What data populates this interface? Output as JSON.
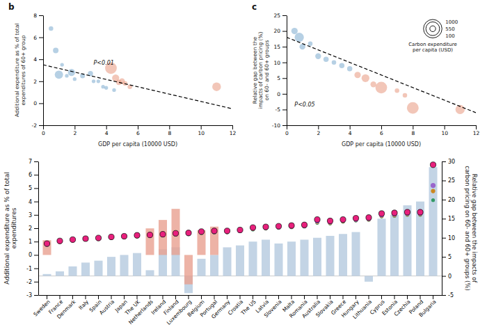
{
  "chart_data": [
    {
      "type": "bar",
      "categories": [
        "Sweden",
        "France",
        "Denmark",
        "Italy",
        "Spain",
        "Austria",
        "Japan",
        "The UK",
        "Netherlands",
        "Ireland",
        "Finland",
        "Luxembourg",
        "Belgium",
        "Portugal",
        "Germany",
        "Croatia",
        "The US",
        "Latvia",
        "Slovenia",
        "Malta",
        "Romania",
        "Australia",
        "Slovakia",
        "Greece",
        "Hungary",
        "Lithuania",
        "Cyprus",
        "Estonia",
        "Czechia",
        "Poland",
        "Bulgaria"
      ],
      "ylabel": "Additional expenditure as % of total expenditures",
      "y2label": "Relative gap between the impacts of carbon pricing on 60- and 60+ groups (%)",
      "ylim": [
        -3,
        7
      ],
      "yticks": [
        -3,
        -2,
        -1,
        0,
        1,
        2,
        3,
        4,
        5,
        6,
        7
      ],
      "y2lim": [
        -5,
        30
      ],
      "y2ticks": [
        -5,
        0,
        5,
        10,
        15,
        20,
        25,
        30
      ],
      "series": [
        {
          "type": "bar",
          "axis": "y2",
          "color": "#b8cde0",
          "values": [
            0.5,
            1.2,
            2.5,
            3.5,
            4.0,
            5.0,
            5.5,
            6.0,
            1.5,
            7.0,
            7.5,
            -4.5,
            4.5,
            5.5,
            7.5,
            8.0,
            9.0,
            9.5,
            8.5,
            9.0,
            9.5,
            10.0,
            10.5,
            11.0,
            11.5,
            -1.5,
            15.0,
            16.0,
            18.5,
            19.5,
            28.5
          ]
        },
        {
          "type": "bar",
          "color": "#e8a090",
          "values": [
            1.1,
            0.0,
            0.0,
            0.0,
            0.0,
            0.0,
            0.0,
            0.0,
            1.99,
            2.62,
            3.45,
            -2.2,
            1.85,
            2.12,
            0.0,
            0.0,
            0.0,
            0.0,
            0.0,
            0.0,
            0.0,
            0.0,
            0.0,
            0.0,
            0.0,
            0.0,
            0.0,
            0.0,
            0.0,
            0.0,
            0.0
          ]
        },
        {
          "type": "scatter",
          "color": "#339966",
          "values": [
            0.75,
            0.97,
            1.06,
            1.14,
            1.18,
            1.26,
            1.31,
            1.38,
            1.41,
            1.46,
            1.51,
            1.55,
            1.62,
            1.67,
            1.69,
            1.77,
            1.9,
            1.97,
            2.02,
            2.07,
            2.12,
            2.4,
            2.35,
            2.48,
            2.57,
            2.62,
            2.88,
            2.93,
            3.0,
            3.0,
            4.1
          ]
        },
        {
          "type": "scatter",
          "color": "#cc8822",
          "values": [
            0.77,
            0.99,
            1.09,
            1.17,
            1.21,
            1.29,
            1.34,
            1.41,
            1.44,
            1.49,
            1.54,
            1.58,
            1.66,
            1.71,
            1.73,
            1.8,
            1.96,
            2.01,
            2.06,
            2.11,
            2.16,
            2.48,
            2.41,
            2.53,
            2.62,
            2.67,
            2.93,
            2.98,
            3.06,
            3.06,
            4.78
          ]
        },
        {
          "type": "scatter",
          "color": "#9966cc",
          "values": [
            0.8,
            1.02,
            1.12,
            1.2,
            1.24,
            1.32,
            1.38,
            1.45,
            1.48,
            1.52,
            1.58,
            1.61,
            1.7,
            1.75,
            1.77,
            1.83,
            2.0,
            2.05,
            2.1,
            2.15,
            2.2,
            2.55,
            2.47,
            2.58,
            2.67,
            2.72,
            3.0,
            3.05,
            3.12,
            3.12,
            5.2
          ]
        },
        {
          "type": "scatter",
          "color": "#e8207c",
          "values": [
            0.85,
            1.05,
            1.15,
            1.22,
            1.27,
            1.35,
            1.4,
            1.47,
            1.5,
            1.55,
            1.62,
            1.65,
            1.75,
            1.8,
            1.8,
            1.87,
            2.05,
            2.1,
            2.15,
            2.2,
            2.25,
            2.65,
            2.55,
            2.65,
            2.75,
            2.8,
            3.1,
            3.15,
            3.2,
            3.2,
            6.75
          ]
        }
      ]
    },
    {
      "type": "scatter",
      "title": "b",
      "xlabel": "GDP per capita (10000 USD)",
      "ylabel": "Additional expenditure as % of total\nexpenditures of 60+ group",
      "xlim": [
        0,
        12
      ],
      "xticks": [
        0,
        2,
        4,
        6,
        8,
        10,
        12
      ],
      "ylim": [
        -2,
        8
      ],
      "yticks": [
        -2,
        0,
        2,
        4,
        6,
        8
      ],
      "series": [
        {
          "color": "#7aaace",
          "x": [
            0.5,
            0.8,
            1.0,
            1.2,
            1.5,
            1.8,
            2.0,
            2.5,
            3.0,
            3.2,
            3.5,
            3.8,
            4.0,
            4.5
          ],
          "values": [
            6.8,
            4.8,
            2.6,
            3.5,
            2.5,
            2.8,
            2.2,
            2.5,
            2.7,
            2.0,
            2.0,
            1.5,
            1.4,
            1.2
          ],
          "sizes": [
            60,
            90,
            200,
            40,
            40,
            150,
            40,
            70,
            80,
            40,
            40,
            40,
            40,
            40
          ]
        },
        {
          "color": "#e8977e",
          "x": [
            4.3,
            4.6,
            4.8,
            5.0,
            5.2,
            5.5,
            11.0
          ],
          "values": [
            3.2,
            2.3,
            1.9,
            2.0,
            1.8,
            1.5,
            1.5
          ],
          "sizes": [
            400,
            150,
            80,
            100,
            60,
            60,
            220
          ]
        },
        {
          "type": "line",
          "line_style": "dashed",
          "color": "#000000",
          "x": [
            0,
            12
          ],
          "values": [
            3.5,
            -0.5
          ]
        }
      ],
      "annotations": [
        {
          "text": "P<0.01",
          "x": 3.2,
          "y": 3.5
        }
      ]
    },
    {
      "type": "scatter",
      "title": "c",
      "xlabel": "GDP per capita (10000 USD)",
      "ylabel": "Relative gap between the\nimpacts of carbon pricing (%)\non 60- and 60+ groups",
      "xlim": [
        0,
        12
      ],
      "xticks": [
        0,
        2,
        4,
        6,
        8,
        10,
        12
      ],
      "ylim": [
        -10,
        25
      ],
      "yticks": [
        -10,
        -5,
        0,
        5,
        10,
        15,
        20,
        25
      ],
      "series": [
        {
          "color": "#7aaace",
          "x": [
            0.5,
            0.8,
            1.0,
            1.5,
            2.0,
            2.5,
            3.0,
            3.5,
            4.0
          ],
          "values": [
            20.0,
            18.0,
            15.0,
            16.0,
            12.0,
            11.0,
            10.0,
            9.0,
            8.0
          ],
          "sizes": [
            120,
            250,
            100,
            60,
            100,
            80,
            60,
            80,
            80
          ]
        },
        {
          "color": "#e8977e",
          "x": [
            4.5,
            5.0,
            5.5,
            6.0,
            7.0,
            7.5,
            8.0,
            11.0
          ],
          "values": [
            6.0,
            5.0,
            3.0,
            2.0,
            1.0,
            -0.5,
            -4.5,
            -5.0
          ],
          "sizes": [
            120,
            180,
            100,
            400,
            60,
            60,
            400,
            250
          ]
        },
        {
          "type": "line",
          "line_style": "dashed",
          "color": "#000000",
          "x": [
            0,
            12
          ],
          "values": [
            18.0,
            -6.0
          ]
        }
      ],
      "annotations": [
        {
          "text": "P<0.05",
          "x": 0.5,
          "y": -4.0
        }
      ],
      "size_legend": {
        "title": "Carbon expenditure\nper capita (USD)",
        "sizes": [
          100,
          550,
          1000
        ]
      }
    }
  ]
}
